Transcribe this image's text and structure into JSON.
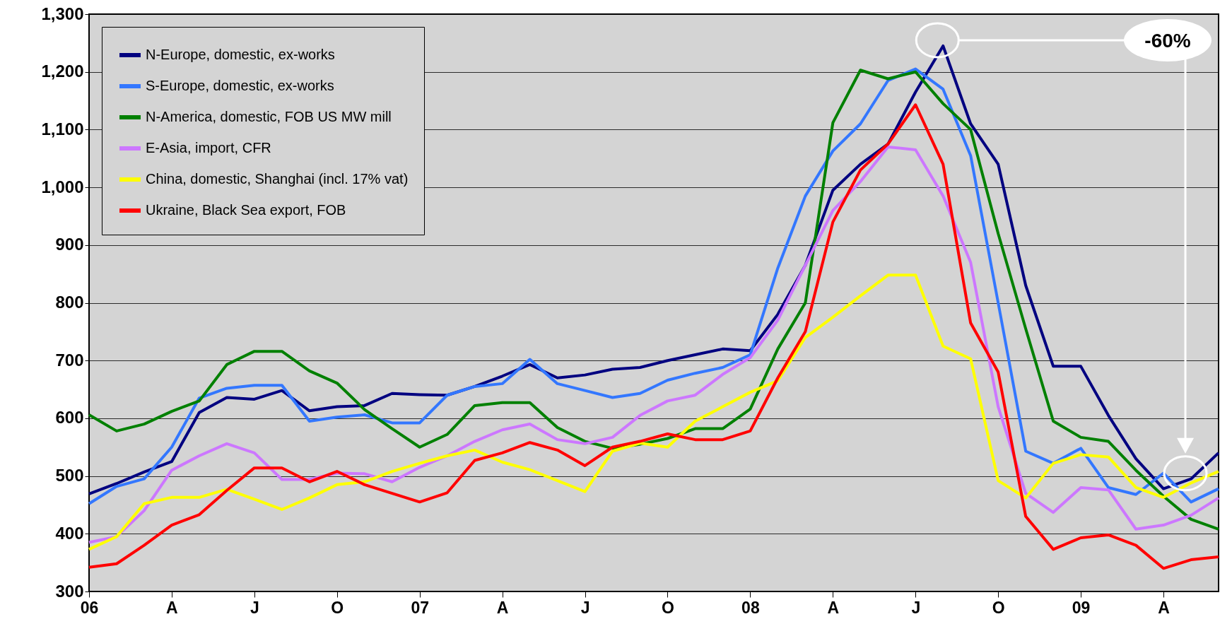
{
  "chart_data": {
    "type": "line",
    "categories": [
      "06",
      null,
      null,
      "A",
      null,
      null,
      "J",
      null,
      null,
      "O",
      null,
      null,
      "07",
      null,
      null,
      "A",
      null,
      null,
      "J",
      null,
      null,
      "O",
      null,
      null,
      "08",
      null,
      null,
      "A",
      null,
      null,
      "J",
      null,
      null,
      "O",
      null,
      null,
      "09",
      null,
      null,
      "A",
      null,
      null
    ],
    "series": [
      {
        "name": "N-Europe, domestic, ex-works",
        "color": "#000080",
        "values": [
          469,
          487,
          507,
          525,
          610,
          636,
          633,
          648,
          613,
          620,
          622,
          643,
          641,
          640,
          655,
          673,
          693,
          670,
          675,
          685,
          688,
          700,
          710,
          720,
          717,
          780,
          865,
          995,
          1040,
          1075,
          1165,
          1245,
          1110,
          1040,
          830,
          690,
          690,
          605,
          530,
          478,
          495,
          540
        ]
      },
      {
        "name": "S-Europe, domestic, ex-works",
        "color": "#3377ff",
        "values": [
          452,
          482,
          495,
          550,
          635,
          652,
          657,
          657,
          595,
          602,
          606,
          592,
          592,
          640,
          655,
          660,
          702,
          660,
          648,
          636,
          643,
          666,
          678,
          688,
          710,
          860,
          985,
          1063,
          1110,
          1185,
          1205,
          1170,
          1055,
          800,
          543,
          522,
          548,
          480,
          468,
          505,
          455,
          478
        ]
      },
      {
        "name": "N-America, domestic, FOB US MW mill",
        "color": "#008000",
        "values": [
          606,
          578,
          590,
          612,
          630,
          693,
          716,
          716,
          682,
          661,
          615,
          582,
          550,
          572,
          622,
          627,
          627,
          584,
          560,
          548,
          555,
          565,
          582,
          582,
          616,
          720,
          800,
          1112,
          1203,
          1188,
          1200,
          1145,
          1100,
          920,
          755,
          595,
          567,
          560,
          510,
          465,
          425,
          408
        ]
      },
      {
        "name": "E-Asia, import, CFR",
        "color": "#cc77ff",
        "values": [
          385,
          395,
          440,
          510,
          535,
          556,
          540,
          494,
          494,
          505,
          504,
          490,
          515,
          535,
          560,
          580,
          590,
          563,
          556,
          567,
          605,
          630,
          640,
          676,
          705,
          770,
          865,
          960,
          1010,
          1070,
          1065,
          985,
          870,
          620,
          470,
          437,
          480,
          476,
          408,
          415,
          432,
          462
        ]
      },
      {
        "name": "China, domestic, Shanghai (incl. 17% vat)",
        "color": "#ffff00",
        "values": [
          373,
          395,
          452,
          463,
          463,
          477,
          460,
          442,
          462,
          485,
          490,
          508,
          522,
          535,
          545,
          524,
          511,
          492,
          473,
          543,
          557,
          550,
          595,
          620,
          645,
          665,
          740,
          775,
          812,
          848,
          848,
          725,
          703,
          492,
          462,
          522,
          537,
          533,
          480,
          463,
          488,
          508
        ]
      },
      {
        "name": "Ukraine, Black Sea export, FOB",
        "color": "#ff0000",
        "values": [
          342,
          348,
          380,
          415,
          433,
          475,
          514,
          514,
          490,
          508,
          485,
          470,
          455,
          471,
          527,
          540,
          558,
          545,
          518,
          550,
          560,
          573,
          563,
          563,
          578,
          670,
          750,
          940,
          1030,
          1075,
          1143,
          1040,
          765,
          680,
          430,
          373,
          393,
          398,
          380,
          340,
          355,
          360
        ]
      }
    ],
    "ylim": [
      300,
      1300
    ],
    "yticks": [
      300,
      400,
      500,
      600,
      700,
      800,
      900,
      {
        "value": 1000,
        "label": "1,000"
      },
      {
        "value": 1100,
        "label": "1,100"
      },
      {
        "value": 1200,
        "label": "1,200"
      },
      {
        "value": 1300,
        "label": "1,300"
      }
    ],
    "grid": "y",
    "legend": "top left",
    "annotations": [
      "-60%"
    ]
  }
}
